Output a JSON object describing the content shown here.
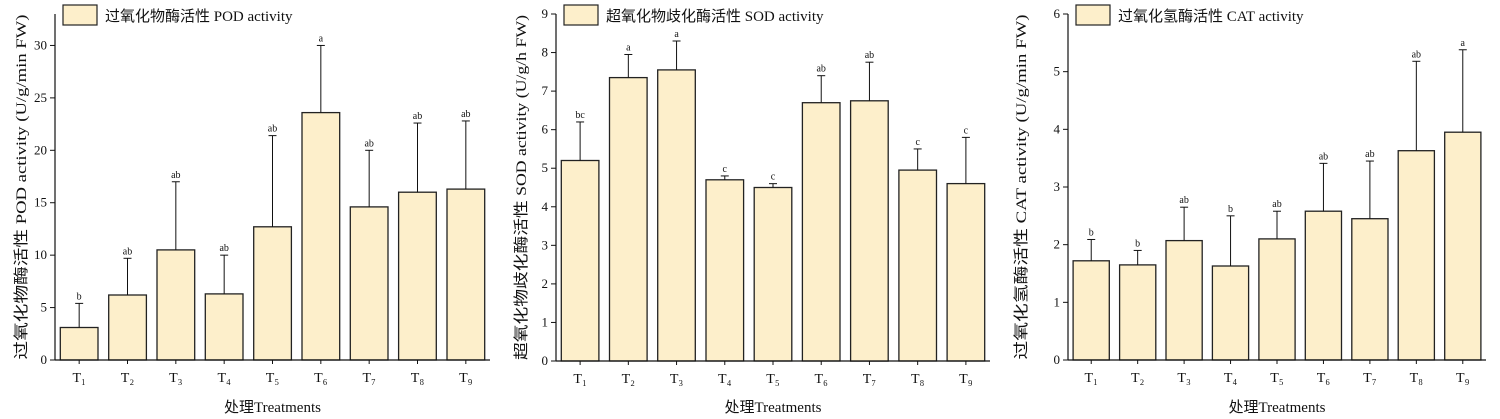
{
  "colors": {
    "bar_fill": "#fdefcb",
    "bar_stroke": "#222222",
    "axis": "#111111"
  },
  "chart_data": [
    {
      "type": "bar",
      "legend": "过氧化物酶活性 POD activity",
      "xlabel": "处理Treatments",
      "ylabel": "过氧化物酶活性 POD activity (U/g/min FW)",
      "ylim": [
        0,
        33
      ],
      "yticks": [
        0,
        5,
        10,
        15,
        20,
        25,
        30
      ],
      "categories": [
        "T₁",
        "T₂",
        "T₃",
        "T₄",
        "T₅",
        "T₆",
        "T₇",
        "T₈",
        "T₉"
      ],
      "values": [
        3.1,
        6.2,
        10.5,
        6.3,
        12.7,
        23.6,
        14.6,
        16.0,
        16.3
      ],
      "errors": [
        2.3,
        3.5,
        6.5,
        3.7,
        8.7,
        6.4,
        5.4,
        6.6,
        6.5
      ],
      "letters": [
        "b",
        "ab",
        "ab",
        "ab",
        "ab",
        "a",
        "ab",
        "ab",
        "ab"
      ],
      "legend_position": "top-left"
    },
    {
      "type": "bar",
      "legend": "超氧化物歧化酶活性 SOD activity",
      "xlabel": "处理Treatments",
      "ylabel": "超氧化物歧化酶活性 SOD activity (U/g/h FW)",
      "ylim": [
        0,
        9
      ],
      "yticks": [
        0,
        1,
        2,
        3,
        4,
        5,
        6,
        7,
        8,
        9
      ],
      "categories": [
        "T₁",
        "T₂",
        "T₃",
        "T₄",
        "T₅",
        "T₆",
        "T₇",
        "T₈",
        "T₉"
      ],
      "values": [
        5.2,
        7.35,
        7.55,
        4.7,
        4.5,
        6.7,
        6.75,
        4.95,
        4.6
      ],
      "errors": [
        1.0,
        0.6,
        0.75,
        0.1,
        0.1,
        0.7,
        1.0,
        0.55,
        1.2
      ],
      "letters": [
        "bc",
        "a",
        "a",
        "c",
        "c",
        "ab",
        "ab",
        "c",
        "c"
      ],
      "legend_position": "top-left"
    },
    {
      "type": "bar",
      "legend": "过氧化氢酶活性 CAT activity",
      "xlabel": "处理Treatments",
      "ylabel": "过氧化氢酶活性 CAT activity (U/g/min FW)",
      "ylim": [
        0,
        6
      ],
      "yticks": [
        0,
        1,
        2,
        3,
        4,
        5,
        6
      ],
      "categories": [
        "T₁",
        "T₂",
        "T₃",
        "T₄",
        "T₅",
        "T₆",
        "T₇",
        "T₈",
        "T₉"
      ],
      "values": [
        1.72,
        1.65,
        2.07,
        1.63,
        2.1,
        2.58,
        2.45,
        3.63,
        3.95
      ],
      "errors": [
        0.37,
        0.25,
        0.58,
        0.87,
        0.48,
        0.83,
        1.0,
        1.55,
        1.43
      ],
      "letters": [
        "b",
        "b",
        "ab",
        "b",
        "ab",
        "ab",
        "ab",
        "ab",
        "a"
      ],
      "legend_position": "top-left"
    }
  ]
}
